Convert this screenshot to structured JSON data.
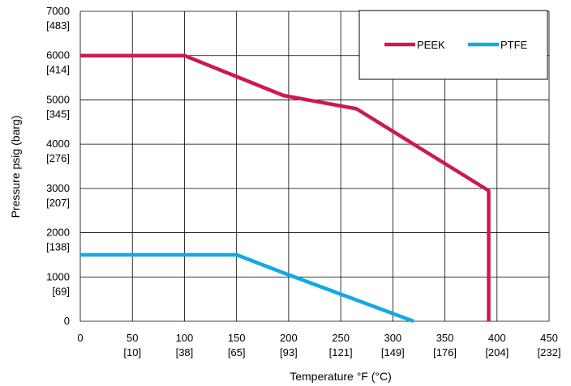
{
  "chart_data": {
    "type": "line",
    "xlabel": "Temperature °F (°C)",
    "ylabel": "Pressure psig (barg)",
    "xlim": [
      0,
      450
    ],
    "ylim": [
      0,
      7000
    ],
    "grid": true,
    "legend_position": "top-right",
    "x_ticks": [
      {
        "value": 0,
        "label": "0",
        "sub": ""
      },
      {
        "value": 50,
        "label": "50",
        "sub": "[10]"
      },
      {
        "value": 100,
        "label": "100",
        "sub": "[38]"
      },
      {
        "value": 150,
        "label": "150",
        "sub": "[65]"
      },
      {
        "value": 200,
        "label": "200",
        "sub": "[93]"
      },
      {
        "value": 250,
        "label": "250",
        "sub": "[121]"
      },
      {
        "value": 300,
        "label": "300",
        "sub": "[149]"
      },
      {
        "value": 350,
        "label": "350",
        "sub": "[176]"
      },
      {
        "value": 400,
        "label": "400",
        "sub": "[204]"
      },
      {
        "value": 450,
        "label": "450",
        "sub": "[232]"
      }
    ],
    "y_ticks": [
      {
        "value": 0,
        "label": "0",
        "sub": ""
      },
      {
        "value": 1000,
        "label": "1000",
        "sub": "[69]"
      },
      {
        "value": 2000,
        "label": "2000",
        "sub": "[138]"
      },
      {
        "value": 3000,
        "label": "3000",
        "sub": "[207]"
      },
      {
        "value": 4000,
        "label": "4000",
        "sub": "[276]"
      },
      {
        "value": 5000,
        "label": "5000",
        "sub": "[345]"
      },
      {
        "value": 6000,
        "label": "6000",
        "sub": "[414]"
      },
      {
        "value": 7000,
        "label": "7000",
        "sub": "[483]"
      }
    ],
    "series": [
      {
        "name": "PEEK",
        "color": "#cc1a4e",
        "points": [
          [
            0,
            6000
          ],
          [
            100,
            6000
          ],
          [
            195,
            5100
          ],
          [
            265,
            4800
          ],
          [
            392,
            2950
          ],
          [
            392,
            0
          ]
        ]
      },
      {
        "name": "PTFE",
        "color": "#13a9e2",
        "points": [
          [
            0,
            1500
          ],
          [
            150,
            1500
          ],
          [
            200,
            1050
          ],
          [
            320,
            0
          ]
        ]
      }
    ]
  }
}
